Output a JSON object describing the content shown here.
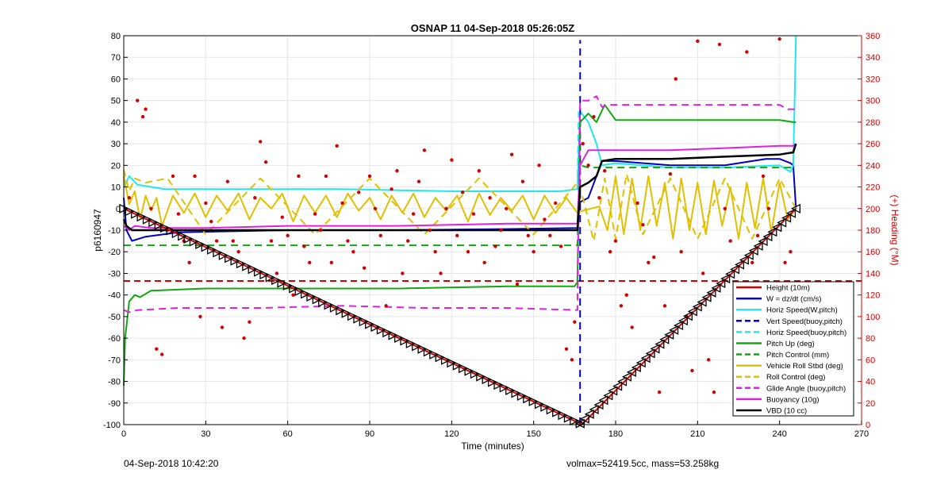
{
  "chart_data": {
    "type": "line",
    "title": "OSNAP 11 04-Sep-2018 05:26:05Z",
    "xlabel": "Time (minutes)",
    "ylabel": "p6160947",
    "y2label": "(+) Heading (°M)",
    "xlim": [
      0,
      270
    ],
    "ylim": [
      -100,
      80
    ],
    "y2lim": [
      0,
      360
    ],
    "xticks": [
      0,
      30,
      60,
      90,
      120,
      150,
      180,
      210,
      240,
      270
    ],
    "yticks": [
      -100,
      -90,
      -80,
      -70,
      -60,
      -50,
      -40,
      -30,
      -20,
      -10,
      0,
      10,
      20,
      30,
      40,
      50,
      60,
      70,
      80
    ],
    "y2ticks": [
      0,
      20,
      40,
      60,
      80,
      100,
      120,
      140,
      160,
      180,
      200,
      220,
      240,
      260,
      280,
      300,
      320,
      340,
      360
    ],
    "legend_position": "bottom-right",
    "grid": true,
    "colors": {
      "height": "#d40000",
      "w": "#0000c0",
      "horiz": "#20e8f0",
      "pitch": "#10a810",
      "roll": "#e0c000",
      "glide": "#e020e0",
      "vbd": "#000000",
      "heading": "#d40000"
    },
    "series": [
      {
        "name": "Height (10m)",
        "style": "solid",
        "color": "#d40000",
        "x": [
          0,
          167,
          168,
          246
        ],
        "y": [
          0,
          -99.5,
          -99.5,
          0
        ]
      },
      {
        "name": "W = dz/dt (cm/s)",
        "style": "solid",
        "color": "#0000c0",
        "x": [
          0,
          1,
          3,
          8,
          20,
          60,
          100,
          140,
          166,
          167,
          170,
          173,
          175,
          180,
          200,
          220,
          235,
          240,
          244,
          245,
          246
        ],
        "y": [
          5,
          -10,
          -15,
          -13,
          -11,
          -10,
          -10,
          -9.5,
          -9,
          3,
          5,
          15,
          22,
          22,
          20,
          20,
          23,
          23,
          21,
          20,
          0
        ]
      },
      {
        "name": "Horiz Speed(W,pitch)",
        "style": "solid",
        "color": "#20e8f0",
        "x": [
          0,
          2,
          5,
          15,
          40,
          80,
          120,
          160,
          166,
          167,
          170,
          173,
          175,
          180,
          200,
          220,
          240,
          244,
          245,
          246
        ],
        "y": [
          10,
          15,
          11,
          9,
          9,
          9,
          8,
          8,
          9,
          45,
          40,
          30,
          20,
          21,
          19,
          19,
          20,
          17,
          20,
          80
        ]
      },
      {
        "name": "Vert Speed(buoy,pitch)",
        "style": "dashed",
        "color": "#0000c0",
        "x": [
          167,
          167.01
        ],
        "y": [
          -100,
          78
        ]
      },
      {
        "name": "Horiz Speed(buoy,pitch)",
        "style": "dashed",
        "color": "#20e8f0",
        "x": [
          166,
          166.5
        ],
        "y": [
          9,
          45
        ]
      },
      {
        "name": "Pitch Up (deg)",
        "style": "solid",
        "color": "#10a810",
        "x": [
          0,
          0.5,
          2,
          4,
          6,
          10,
          30,
          60,
          100,
          140,
          165,
          166,
          167,
          170,
          173,
          176,
          180,
          200,
          220,
          240,
          245,
          246
        ],
        "y": [
          -82,
          -60,
          -43,
          -40,
          -41,
          -38,
          -37,
          -37,
          -37,
          -36,
          -36,
          -34,
          40,
          44,
          40,
          48,
          41,
          41,
          41,
          41,
          40,
          40
        ]
      },
      {
        "name": "Pitch Control (mm)",
        "style": "dashed",
        "color": "#10a810",
        "x": [
          0,
          10,
          60,
          120,
          166,
          167,
          170,
          180,
          200,
          240,
          246
        ],
        "y": [
          -17,
          -17,
          -17,
          -17,
          -17,
          20,
          19,
          19,
          19,
          19,
          19
        ]
      },
      {
        "name": "Vehicle Roll Stbd (deg)",
        "style": "solid",
        "color": "#e0c000",
        "x": [
          0,
          2,
          4,
          6,
          8,
          10,
          12,
          14,
          18,
          22,
          26,
          30,
          34,
          38,
          42,
          46,
          50,
          54,
          58,
          62,
          66,
          70,
          74,
          78,
          82,
          86,
          90,
          94,
          98,
          102,
          106,
          110,
          114,
          118,
          122,
          126,
          130,
          134,
          138,
          142,
          146,
          150,
          154,
          158,
          162,
          166,
          168,
          171,
          174,
          177,
          180,
          183,
          186,
          189,
          192,
          195,
          198,
          201,
          204,
          207,
          210,
          213,
          216,
          219,
          222,
          225,
          228,
          231,
          234,
          237,
          240,
          243,
          246
        ],
        "y": [
          15,
          2,
          8,
          -5,
          6,
          -1,
          5,
          -8,
          6,
          -2,
          7,
          -4,
          6,
          -1,
          7,
          -5,
          5,
          0,
          7,
          -6,
          6,
          -2,
          6,
          -4,
          7,
          -1,
          5,
          -5,
          6,
          -2,
          7,
          -4,
          5,
          -1,
          6,
          -6,
          7,
          -3,
          5,
          -1,
          6,
          -5,
          6,
          -2,
          5,
          -2,
          -1,
          0,
          1,
          -10,
          15,
          -12,
          14,
          -10,
          15,
          -8,
          12,
          -14,
          14,
          -10,
          12,
          -12,
          13,
          -8,
          10,
          -14,
          12,
          -9,
          14,
          -11,
          12,
          -5,
          0
        ]
      },
      {
        "name": "Roll Control (deg)",
        "style": "dashed",
        "color": "#e0c000",
        "x": [
          0,
          2,
          4,
          8,
          16,
          30,
          50,
          70,
          90,
          110,
          130,
          150,
          166,
          168,
          172,
          176,
          180,
          184,
          190,
          200,
          210,
          220,
          230,
          240,
          246
        ],
        "y": [
          18,
          8,
          14,
          12,
          14,
          -12,
          14,
          -12,
          14,
          -12,
          14,
          -12,
          12,
          5,
          -15,
          14,
          -14,
          16,
          -12,
          14,
          -14,
          14,
          -14,
          14,
          0
        ]
      },
      {
        "name": "Glide Angle (buoy,pitch)",
        "style": "dashed",
        "color": "#e020e0",
        "x": [
          0,
          2,
          5,
          20,
          50,
          80,
          110,
          140,
          166,
          167,
          170,
          173,
          175,
          178,
          200,
          240,
          243,
          246
        ],
        "y": [
          -47,
          -48,
          -47,
          -46,
          -46,
          -45,
          -46,
          -46,
          -47,
          50,
          50,
          52,
          47,
          48,
          48,
          48,
          46,
          46
        ]
      },
      {
        "name": "Buoyancy (10g)",
        "style": "solid",
        "color": "#e020e0",
        "x": [
          0,
          2,
          4,
          10,
          30,
          60,
          100,
          140,
          166,
          167,
          170,
          173,
          175,
          180,
          200,
          220,
          240,
          245,
          246
        ],
        "y": [
          -8,
          -10,
          -8,
          -9,
          -9,
          -8,
          -8,
          -7,
          -7,
          20,
          27,
          27,
          27,
          27,
          27,
          28,
          29,
          29,
          30
        ]
      },
      {
        "name": "VBD (10 cc)",
        "style": "solid",
        "color": "#000000",
        "x": [
          0,
          1,
          3,
          10,
          40,
          80,
          120,
          160,
          166,
          167,
          170,
          173,
          175,
          180,
          200,
          220,
          240,
          245,
          246
        ],
        "y": [
          -5,
          -8,
          -10,
          -10,
          -10,
          -10,
          -10,
          -10,
          -10,
          10,
          12,
          15,
          22,
          23,
          23,
          24,
          25,
          26,
          30
        ]
      }
    ],
    "heading_dashed": {
      "axis": "right",
      "value": 133,
      "color": "#d40000"
    },
    "height_markers": {
      "x_start": 0,
      "x_end": 246,
      "x_bottom": 167,
      "y_bottom": -99.5,
      "count_down": 78,
      "count_up": 46
    },
    "heading_scatter": {
      "axis": "right",
      "x": [
        2,
        5,
        7,
        8,
        10,
        12,
        14,
        16,
        18,
        20,
        22,
        24,
        26,
        28,
        30,
        32,
        34,
        36,
        38,
        40,
        42,
        44,
        46,
        48,
        50,
        52,
        54,
        56,
        58,
        60,
        62,
        64,
        66,
        68,
        70,
        72,
        74,
        76,
        78,
        80,
        82,
        84,
        86,
        88,
        90,
        92,
        94,
        96,
        98,
        100,
        102,
        104,
        106,
        108,
        110,
        112,
        114,
        116,
        118,
        120,
        122,
        124,
        126,
        128,
        130,
        132,
        134,
        136,
        138,
        140,
        142,
        144,
        146,
        148,
        150,
        152,
        154,
        156,
        158,
        160,
        162,
        164,
        165,
        168,
        170,
        172,
        174,
        176,
        178,
        180,
        182,
        184,
        186,
        188,
        190,
        192,
        194,
        196,
        198,
        200,
        202,
        204,
        206,
        208,
        210,
        212,
        214,
        216,
        218,
        220,
        222,
        224,
        226,
        228,
        230,
        232,
        234,
        236,
        238,
        240,
        242,
        244
      ],
      "y": [
        210,
        300,
        285,
        292,
        200,
        70,
        65,
        180,
        230,
        195,
        170,
        150,
        230,
        100,
        205,
        188,
        170,
        90,
        225,
        170,
        160,
        80,
        95,
        210,
        262,
        243,
        170,
        140,
        192,
        175,
        120,
        230,
        165,
        150,
        195,
        180,
        230,
        150,
        258,
        205,
        170,
        160,
        215,
        145,
        230,
        200,
        175,
        110,
        218,
        235,
        140,
        170,
        195,
        225,
        254,
        180,
        160,
        140,
        200,
        245,
        175,
        215,
        160,
        195,
        235,
        150,
        210,
        165,
        180,
        200,
        250,
        130,
        225,
        175,
        160,
        240,
        190,
        175,
        205,
        165,
        70,
        60,
        95,
        260,
        240,
        285,
        210,
        235,
        160,
        170,
        110,
        120,
        90,
        205,
        185,
        150,
        155,
        30,
        110,
        232,
        320,
        160,
        100,
        50,
        355,
        140,
        60,
        30,
        352,
        200,
        170,
        130,
        90,
        345,
        150,
        175,
        230,
        200,
        105,
        357,
        150,
        160
      ]
    }
  },
  "footer": {
    "left": "04-Sep-2018 10:42:20",
    "right": "volmax=52419.5cc, mass=53.258kg"
  }
}
